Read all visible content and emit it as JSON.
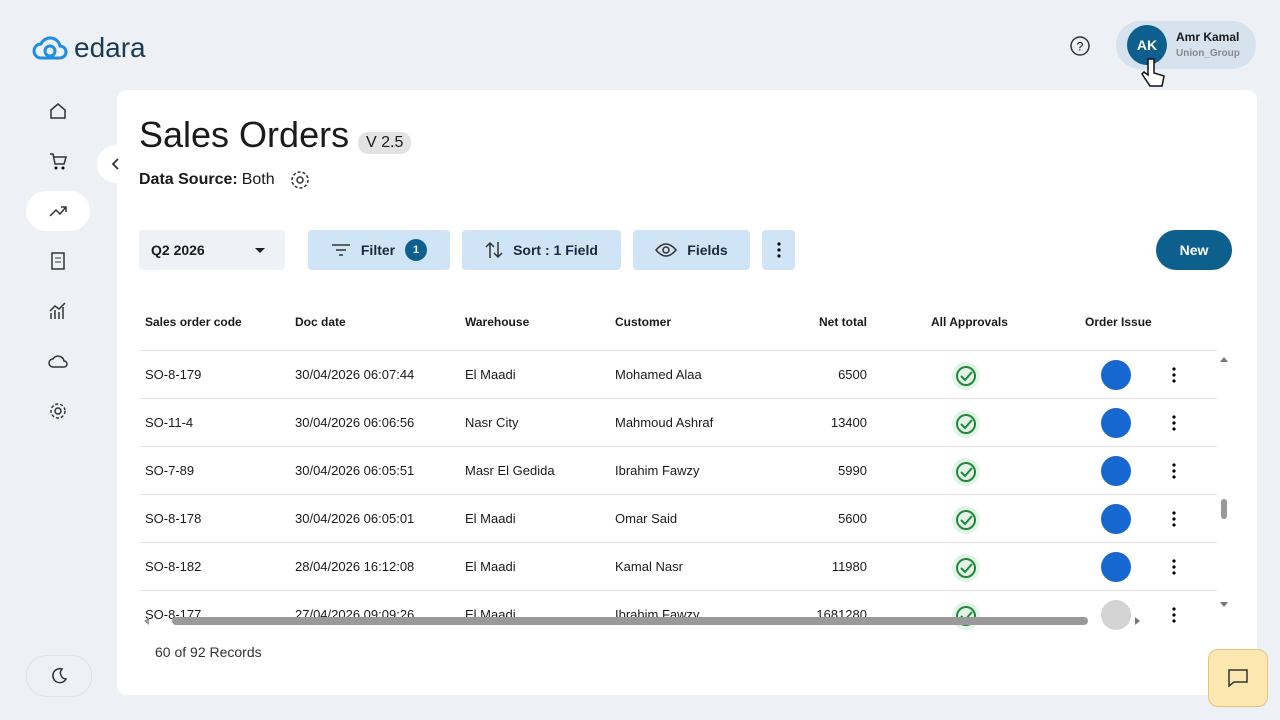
{
  "header": {
    "logo": "edara",
    "user": {
      "initials": "AK",
      "name": "Amr Kamal",
      "company": "Union_Group"
    }
  },
  "page": {
    "title": "Sales Orders",
    "version": "V 2.5",
    "data_source_label": "Data Source:",
    "data_source": "Both"
  },
  "toolbar": {
    "period": "Q2 2026",
    "filter": "Filter",
    "filter_count": "1",
    "sort": "Sort : 1 Field",
    "fields": "Fields",
    "new": "New"
  },
  "table": {
    "headers": [
      "Sales order code",
      "Doc date",
      "Warehouse",
      "Customer",
      "Net total",
      "All Approvals",
      "Order Issue"
    ],
    "rows": [
      [
        "SO-8-179",
        "30/04/2026 06:07:44",
        "El Maadi",
        "Mohamed Alaa",
        "6500"
      ],
      [
        "SO-11-4",
        "30/04/2026 06:06:56",
        "Nasr City",
        "Mahmoud Ashraf",
        "13400"
      ],
      [
        "SO-7-89",
        "30/04/2026 06:05:51",
        "Masr El Gedida",
        "Ibrahim Fawzy",
        "5990"
      ],
      [
        "SO-8-178",
        "30/04/2026 06:05:01",
        "El Maadi",
        "Omar Said",
        "5600"
      ],
      [
        "SO-8-182",
        "28/04/2026 16:12:08",
        "El Maadi",
        "Kamal Nasr",
        "11980"
      ],
      [
        "SO-8-177",
        "27/04/2026 09:09:26",
        "El Maadi",
        "Ibrahim Fawzy",
        "1681280"
      ]
    ]
  },
  "footer": {
    "records": "60 of 92 Records"
  }
}
